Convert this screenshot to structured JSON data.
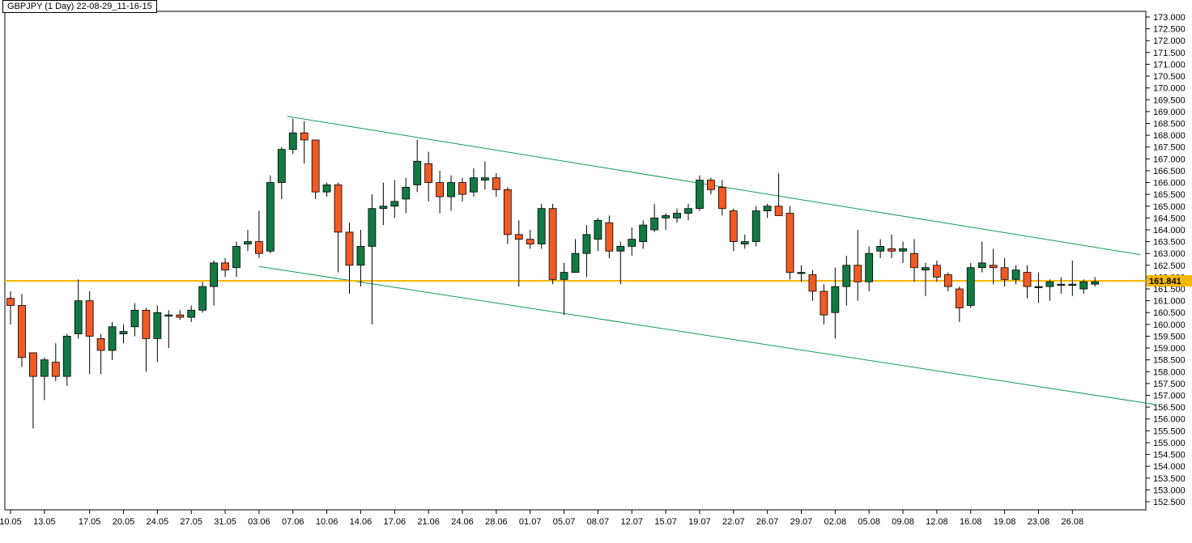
{
  "header": {
    "title": "GBPJPY (1 Day) 22-08-29_11-16-15"
  },
  "colors": {
    "up": "#117a43",
    "down": "#f15a24",
    "price_line": "#f5b800",
    "price_label_bg": "#f5b800",
    "channel": "#129b5a"
  },
  "chart_data": {
    "type": "candlestick",
    "title": "GBPJPY (1 Day) 22-08-29_11-16-15",
    "ylim": [
      152.5,
      173.0
    ],
    "y_ticks": [
      "173.000",
      "172.500",
      "172.000",
      "171.500",
      "171.000",
      "170.500",
      "170.000",
      "169.500",
      "169.000",
      "168.500",
      "168.000",
      "167.500",
      "167.000",
      "166.500",
      "166.000",
      "165.500",
      "165.000",
      "164.500",
      "164.000",
      "163.500",
      "163.000",
      "162.500",
      "162.000",
      "161.500",
      "161.000",
      "160.500",
      "160.000",
      "159.500",
      "159.000",
      "158.500",
      "158.000",
      "157.500",
      "157.000",
      "156.500",
      "156.000",
      "155.500",
      "155.000",
      "154.500",
      "154.000",
      "153.500",
      "153.000",
      "152.500"
    ],
    "x_tick_labels": [
      {
        "label": "10.05",
        "index": 0
      },
      {
        "label": "13.05",
        "index": 3
      },
      {
        "label": "17.05",
        "index": 7
      },
      {
        "label": "20.05",
        "index": 10
      },
      {
        "label": "24.05",
        "index": 13
      },
      {
        "label": "27.05",
        "index": 16
      },
      {
        "label": "31.05",
        "index": 19
      },
      {
        "label": "03.06",
        "index": 22
      },
      {
        "label": "07.06",
        "index": 25
      },
      {
        "label": "10.06",
        "index": 28
      },
      {
        "label": "14.06",
        "index": 31
      },
      {
        "label": "17.06",
        "index": 34
      },
      {
        "label": "21.06",
        "index": 37
      },
      {
        "label": "24.06",
        "index": 40
      },
      {
        "label": "28.06",
        "index": 43
      },
      {
        "label": "01.07",
        "index": 46
      },
      {
        "label": "05.07",
        "index": 49
      },
      {
        "label": "08.07",
        "index": 52
      },
      {
        "label": "12.07",
        "index": 55
      },
      {
        "label": "15.07",
        "index": 58
      },
      {
        "label": "19.07",
        "index": 61
      },
      {
        "label": "22.07",
        "index": 64
      },
      {
        "label": "26.07",
        "index": 67
      },
      {
        "label": "29.07",
        "index": 70
      },
      {
        "label": "02.08",
        "index": 73
      },
      {
        "label": "05.08",
        "index": 76
      },
      {
        "label": "09.08",
        "index": 79
      },
      {
        "label": "12.08",
        "index": 82
      },
      {
        "label": "16.08",
        "index": 85
      },
      {
        "label": "19.08",
        "index": 88
      },
      {
        "label": "23.08",
        "index": 91
      },
      {
        "label": "26.08",
        "index": 94
      }
    ],
    "current_price": 161.841,
    "current_price_label": "161.841",
    "channel_lines": [
      {
        "from": {
          "index": 24.5,
          "price": 168.8
        },
        "to": {
          "index": 100,
          "price": 162.95
        }
      },
      {
        "from": {
          "index": 22,
          "price": 162.45
        },
        "to": {
          "index": 101.5,
          "price": 156.6
        }
      }
    ],
    "candles": [
      {
        "o": 161.1,
        "h": 161.4,
        "l": 160.0,
        "c": 160.8
      },
      {
        "o": 160.8,
        "h": 161.3,
        "l": 158.2,
        "c": 158.6
      },
      {
        "o": 158.8,
        "h": 158.8,
        "l": 155.6,
        "c": 157.8
      },
      {
        "o": 157.8,
        "h": 158.6,
        "l": 156.8,
        "c": 158.5
      },
      {
        "o": 158.4,
        "h": 159.2,
        "l": 157.6,
        "c": 157.8
      },
      {
        "o": 157.8,
        "h": 159.6,
        "l": 157.4,
        "c": 159.5
      },
      {
        "o": 159.6,
        "h": 161.9,
        "l": 159.4,
        "c": 161.0
      },
      {
        "o": 161.0,
        "h": 161.4,
        "l": 157.9,
        "c": 159.5
      },
      {
        "o": 159.4,
        "h": 159.6,
        "l": 157.9,
        "c": 158.9
      },
      {
        "o": 158.9,
        "h": 160.1,
        "l": 158.5,
        "c": 159.9
      },
      {
        "o": 159.6,
        "h": 160.0,
        "l": 159.2,
        "c": 159.7
      },
      {
        "o": 159.9,
        "h": 160.9,
        "l": 159.5,
        "c": 160.6
      },
      {
        "o": 160.6,
        "h": 160.7,
        "l": 158.0,
        "c": 159.4
      },
      {
        "o": 159.4,
        "h": 160.8,
        "l": 158.4,
        "c": 160.5
      },
      {
        "o": 160.4,
        "h": 160.6,
        "l": 159.0,
        "c": 160.4
      },
      {
        "o": 160.4,
        "h": 160.6,
        "l": 160.2,
        "c": 160.3
      },
      {
        "o": 160.3,
        "h": 160.8,
        "l": 160.1,
        "c": 160.6
      },
      {
        "o": 160.6,
        "h": 161.8,
        "l": 160.5,
        "c": 161.6
      },
      {
        "o": 161.6,
        "h": 162.7,
        "l": 160.8,
        "c": 162.6
      },
      {
        "o": 162.6,
        "h": 162.8,
        "l": 162.0,
        "c": 162.3
      },
      {
        "o": 162.4,
        "h": 163.5,
        "l": 162.0,
        "c": 163.3
      },
      {
        "o": 163.4,
        "h": 164.0,
        "l": 163.1,
        "c": 163.5
      },
      {
        "o": 163.5,
        "h": 164.8,
        "l": 162.8,
        "c": 163.0
      },
      {
        "o": 163.1,
        "h": 166.3,
        "l": 163.0,
        "c": 166.0
      },
      {
        "o": 166.0,
        "h": 167.5,
        "l": 165.3,
        "c": 167.4
      },
      {
        "o": 167.4,
        "h": 168.7,
        "l": 167.2,
        "c": 168.1
      },
      {
        "o": 168.1,
        "h": 168.6,
        "l": 166.8,
        "c": 167.8
      },
      {
        "o": 167.8,
        "h": 167.8,
        "l": 165.3,
        "c": 165.6
      },
      {
        "o": 165.6,
        "h": 166.0,
        "l": 165.4,
        "c": 165.9
      },
      {
        "o": 165.9,
        "h": 166.0,
        "l": 162.2,
        "c": 163.9
      },
      {
        "o": 163.9,
        "h": 164.3,
        "l": 161.3,
        "c": 162.5
      },
      {
        "o": 162.5,
        "h": 164.0,
        "l": 161.6,
        "c": 163.3
      },
      {
        "o": 163.3,
        "h": 165.5,
        "l": 160.0,
        "c": 164.9
      },
      {
        "o": 164.9,
        "h": 166.0,
        "l": 164.2,
        "c": 165.0
      },
      {
        "o": 165.0,
        "h": 166.1,
        "l": 164.5,
        "c": 165.2
      },
      {
        "o": 165.3,
        "h": 166.2,
        "l": 164.7,
        "c": 165.8
      },
      {
        "o": 165.9,
        "h": 167.8,
        "l": 165.6,
        "c": 166.9
      },
      {
        "o": 166.8,
        "h": 167.3,
        "l": 165.2,
        "c": 166.0
      },
      {
        "o": 166.0,
        "h": 166.5,
        "l": 164.7,
        "c": 165.4
      },
      {
        "o": 165.4,
        "h": 166.3,
        "l": 164.8,
        "c": 166.0
      },
      {
        "o": 166.0,
        "h": 166.2,
        "l": 165.2,
        "c": 165.5
      },
      {
        "o": 165.6,
        "h": 166.6,
        "l": 165.4,
        "c": 166.2
      },
      {
        "o": 166.1,
        "h": 166.9,
        "l": 165.7,
        "c": 166.2
      },
      {
        "o": 166.2,
        "h": 166.4,
        "l": 165.4,
        "c": 165.7
      },
      {
        "o": 165.7,
        "h": 165.8,
        "l": 163.4,
        "c": 163.8
      },
      {
        "o": 163.8,
        "h": 164.4,
        "l": 161.6,
        "c": 163.6
      },
      {
        "o": 163.6,
        "h": 164.0,
        "l": 163.2,
        "c": 163.4
      },
      {
        "o": 163.4,
        "h": 165.1,
        "l": 163.2,
        "c": 164.9
      },
      {
        "o": 164.9,
        "h": 165.1,
        "l": 161.7,
        "c": 161.9
      },
      {
        "o": 161.9,
        "h": 162.6,
        "l": 160.4,
        "c": 162.2
      },
      {
        "o": 162.2,
        "h": 163.6,
        "l": 162.2,
        "c": 163.0
      },
      {
        "o": 163.0,
        "h": 164.2,
        "l": 162.0,
        "c": 163.8
      },
      {
        "o": 163.6,
        "h": 164.5,
        "l": 163.1,
        "c": 164.4
      },
      {
        "o": 164.3,
        "h": 164.6,
        "l": 162.8,
        "c": 163.1
      },
      {
        "o": 163.1,
        "h": 163.5,
        "l": 161.7,
        "c": 163.3
      },
      {
        "o": 163.3,
        "h": 164.1,
        "l": 162.9,
        "c": 163.6
      },
      {
        "o": 163.5,
        "h": 164.4,
        "l": 163.2,
        "c": 164.2
      },
      {
        "o": 164.0,
        "h": 165.1,
        "l": 163.9,
        "c": 164.5
      },
      {
        "o": 164.5,
        "h": 164.7,
        "l": 164.0,
        "c": 164.6
      },
      {
        "o": 164.5,
        "h": 164.9,
        "l": 164.3,
        "c": 164.7
      },
      {
        "o": 164.7,
        "h": 165.1,
        "l": 164.4,
        "c": 164.9
      },
      {
        "o": 164.9,
        "h": 166.3,
        "l": 164.8,
        "c": 166.1
      },
      {
        "o": 166.1,
        "h": 166.2,
        "l": 165.5,
        "c": 165.7
      },
      {
        "o": 165.8,
        "h": 166.1,
        "l": 164.6,
        "c": 164.9
      },
      {
        "o": 164.8,
        "h": 164.9,
        "l": 163.1,
        "c": 163.5
      },
      {
        "o": 163.4,
        "h": 163.8,
        "l": 163.2,
        "c": 163.5
      },
      {
        "o": 163.5,
        "h": 165.0,
        "l": 163.3,
        "c": 164.8
      },
      {
        "o": 164.8,
        "h": 165.1,
        "l": 164.5,
        "c": 165.0
      },
      {
        "o": 165.0,
        "h": 166.4,
        "l": 164.6,
        "c": 164.6
      },
      {
        "o": 164.7,
        "h": 165.0,
        "l": 161.9,
        "c": 162.2
      },
      {
        "o": 162.2,
        "h": 162.5,
        "l": 161.8,
        "c": 162.2
      },
      {
        "o": 162.1,
        "h": 162.3,
        "l": 161.0,
        "c": 161.4
      },
      {
        "o": 161.4,
        "h": 161.7,
        "l": 160.0,
        "c": 160.4
      },
      {
        "o": 160.5,
        "h": 162.4,
        "l": 159.4,
        "c": 161.6
      },
      {
        "o": 161.6,
        "h": 162.9,
        "l": 160.8,
        "c": 162.5
      },
      {
        "o": 162.5,
        "h": 164.0,
        "l": 161.0,
        "c": 161.8
      },
      {
        "o": 161.8,
        "h": 163.3,
        "l": 161.4,
        "c": 163.0
      },
      {
        "o": 163.1,
        "h": 163.6,
        "l": 162.8,
        "c": 163.3
      },
      {
        "o": 163.2,
        "h": 163.8,
        "l": 162.8,
        "c": 163.1
      },
      {
        "o": 163.1,
        "h": 163.5,
        "l": 162.6,
        "c": 163.2
      },
      {
        "o": 163.0,
        "h": 163.6,
        "l": 161.8,
        "c": 162.4
      },
      {
        "o": 162.3,
        "h": 162.6,
        "l": 161.2,
        "c": 162.4
      },
      {
        "o": 162.5,
        "h": 162.7,
        "l": 161.8,
        "c": 162.0
      },
      {
        "o": 162.1,
        "h": 162.2,
        "l": 161.4,
        "c": 161.6
      },
      {
        "o": 161.5,
        "h": 161.6,
        "l": 160.1,
        "c": 160.7
      },
      {
        "o": 160.8,
        "h": 162.6,
        "l": 160.7,
        "c": 162.4
      },
      {
        "o": 162.4,
        "h": 163.5,
        "l": 162.2,
        "c": 162.6
      },
      {
        "o": 162.5,
        "h": 163.2,
        "l": 161.7,
        "c": 162.4
      },
      {
        "o": 162.4,
        "h": 162.8,
        "l": 161.6,
        "c": 161.9
      },
      {
        "o": 161.9,
        "h": 162.5,
        "l": 161.7,
        "c": 162.3
      },
      {
        "o": 162.2,
        "h": 162.5,
        "l": 161.1,
        "c": 161.6
      },
      {
        "o": 161.6,
        "h": 162.2,
        "l": 160.9,
        "c": 161.6
      },
      {
        "o": 161.6,
        "h": 161.9,
        "l": 161.0,
        "c": 161.8
      },
      {
        "o": 161.7,
        "h": 162.0,
        "l": 161.3,
        "c": 161.7
      },
      {
        "o": 161.7,
        "h": 162.7,
        "l": 161.2,
        "c": 161.7
      },
      {
        "o": 161.5,
        "h": 161.9,
        "l": 161.3,
        "c": 161.8
      },
      {
        "o": 161.7,
        "h": 162.0,
        "l": 161.6,
        "c": 161.8
      }
    ]
  }
}
